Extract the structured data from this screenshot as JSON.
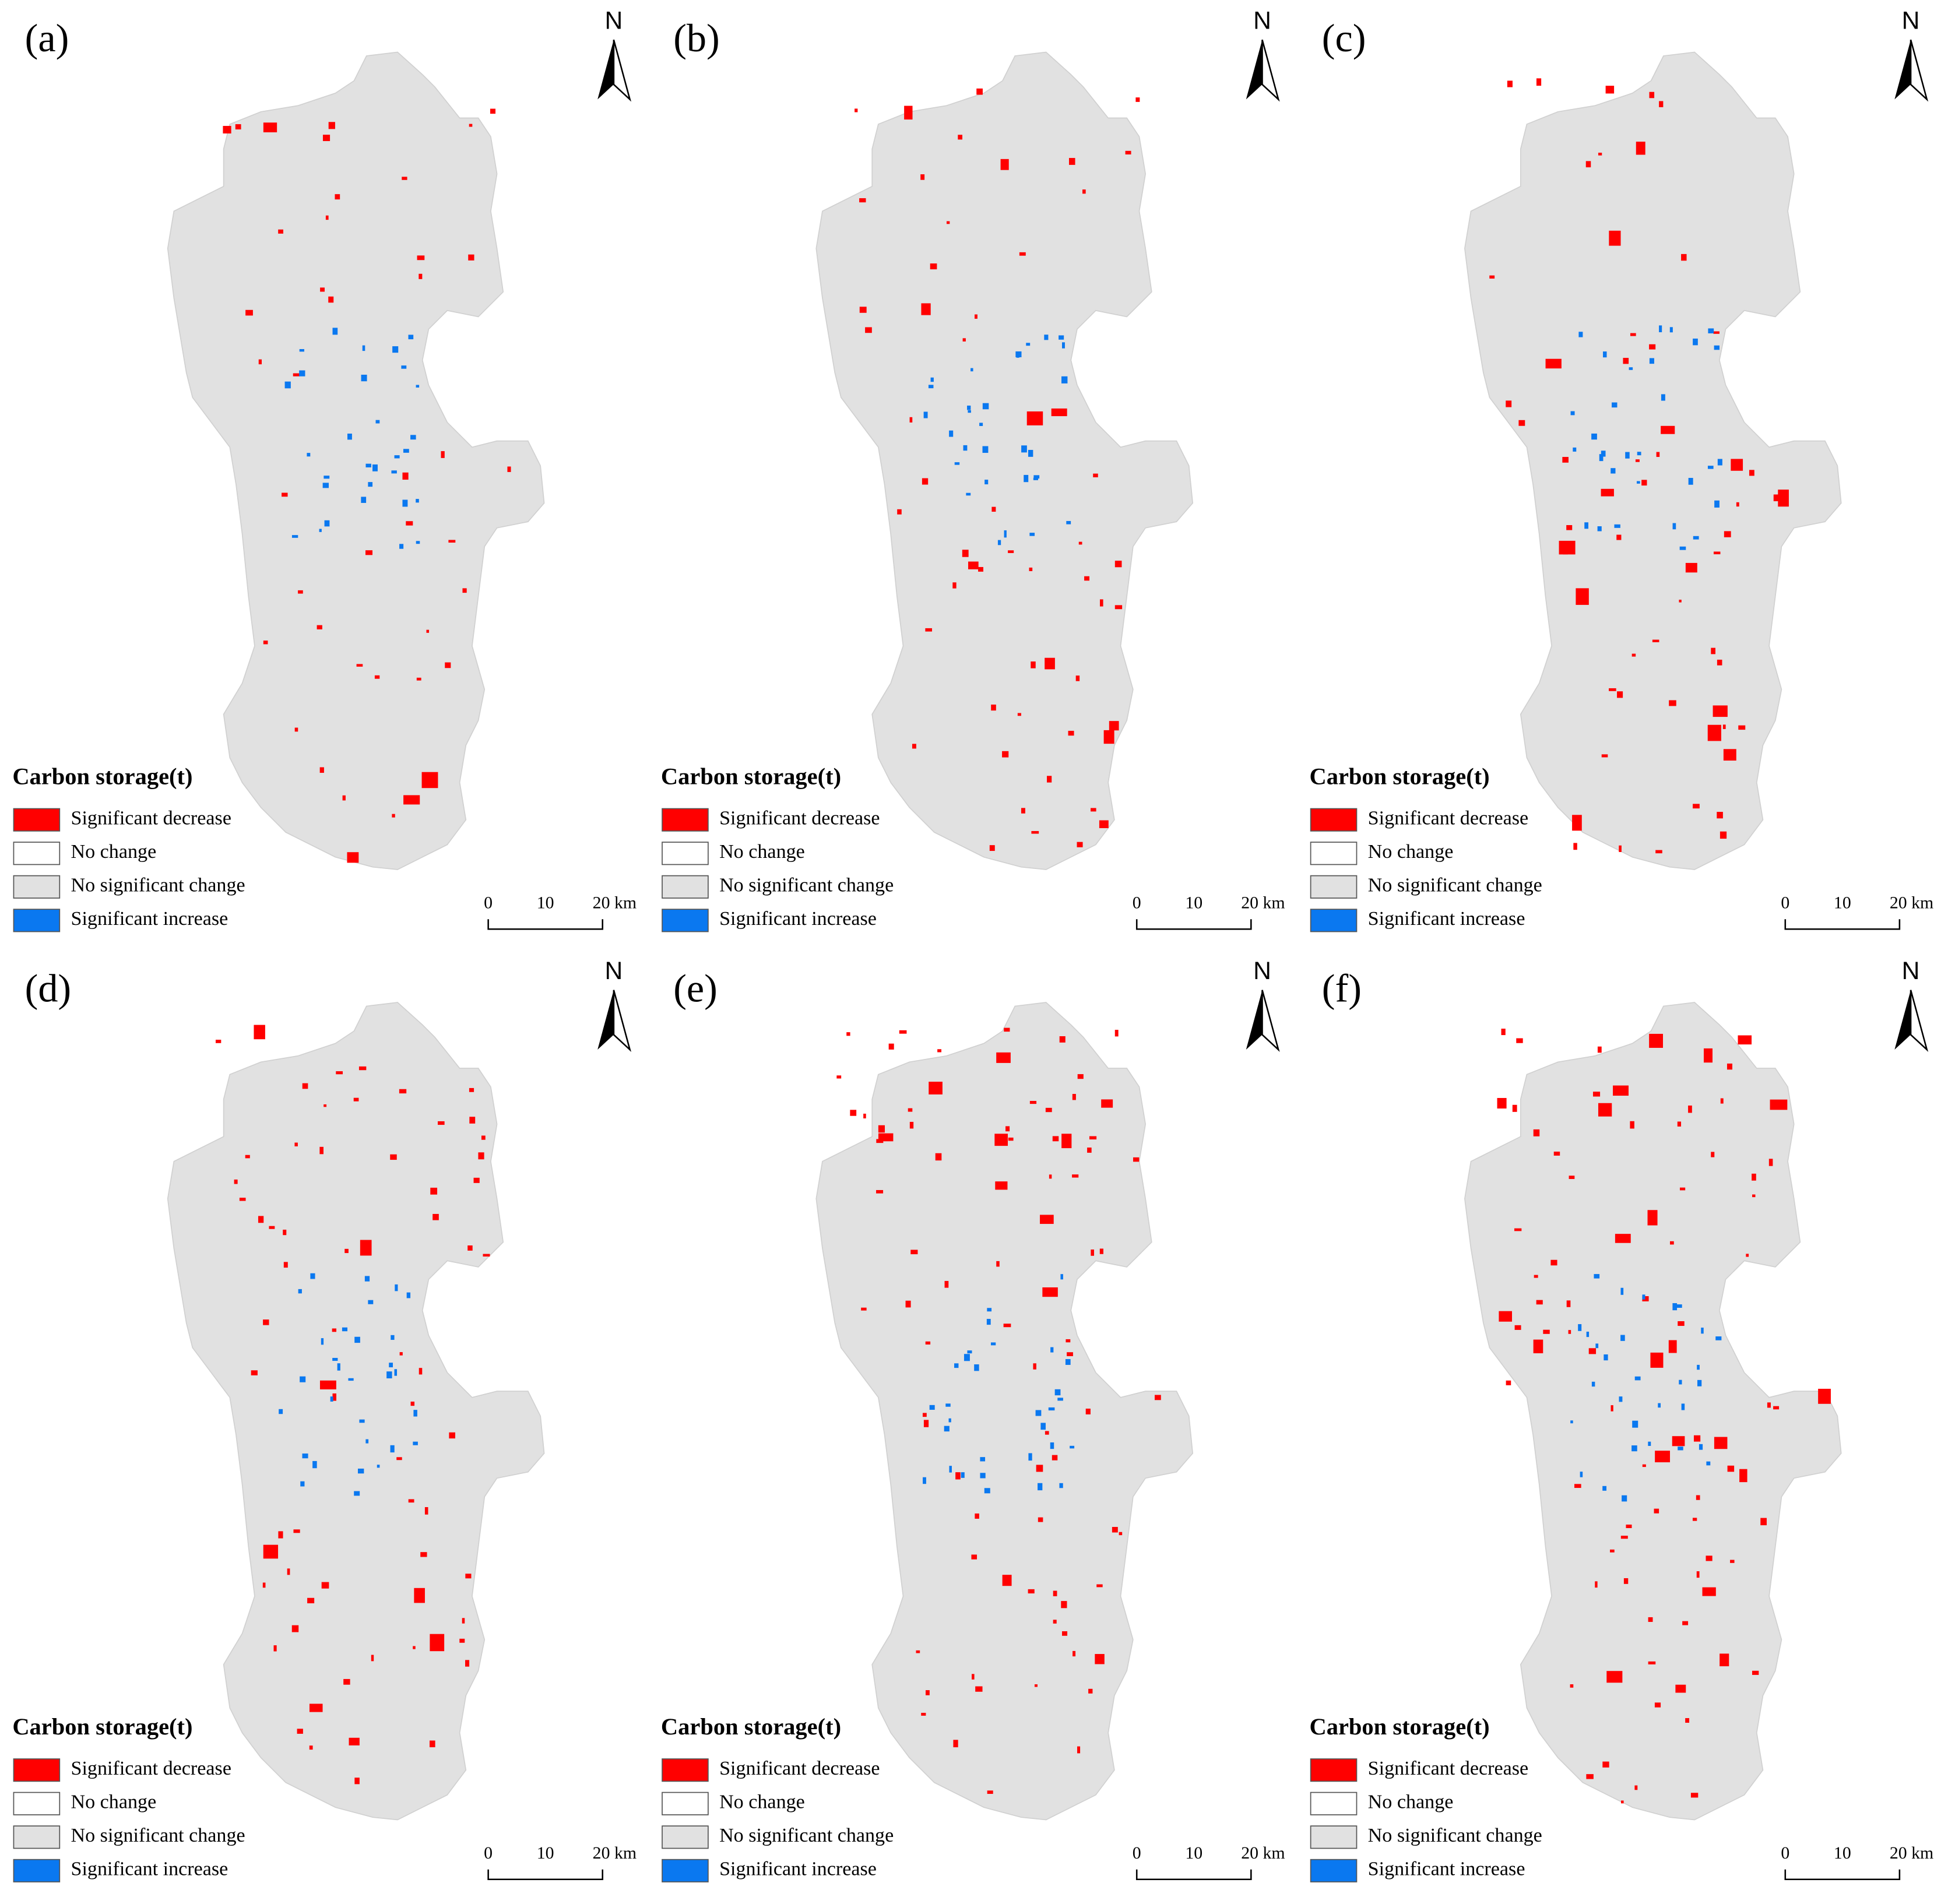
{
  "panels": [
    {
      "label": "(a)"
    },
    {
      "label": "(b)"
    },
    {
      "label": "(c)"
    },
    {
      "label": "(d)"
    },
    {
      "label": "(e)"
    },
    {
      "label": "(f)"
    }
  ],
  "north": "N",
  "legend": {
    "title": "Carbon storage(t)",
    "items": [
      {
        "label": "Significant decrease",
        "color": "#ff0000"
      },
      {
        "label": "No change",
        "color": "#ffffff"
      },
      {
        "label": "No significant change",
        "color": "#e1e1e1"
      },
      {
        "label": "Significant increase",
        "color": "#0a78f0"
      }
    ]
  },
  "scale_bar": [
    "0",
    "10",
    "20 km"
  ]
}
